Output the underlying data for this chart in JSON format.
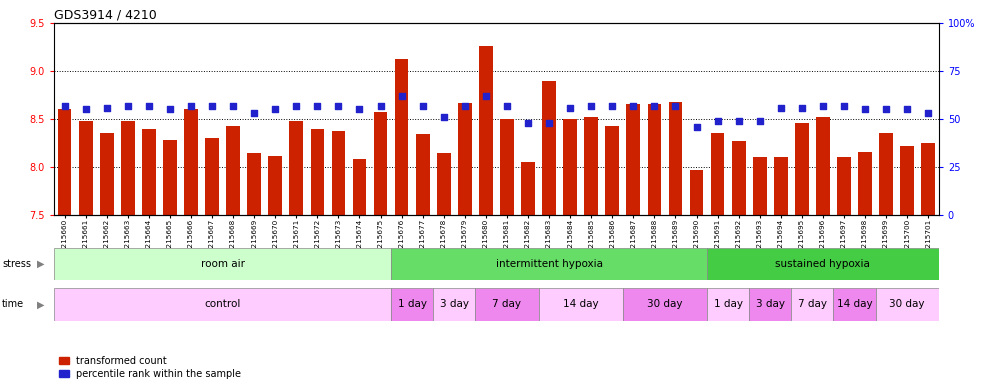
{
  "title": "GDS3914 / 4210",
  "samples": [
    "GSM215660",
    "GSM215661",
    "GSM215662",
    "GSM215663",
    "GSM215664",
    "GSM215665",
    "GSM215666",
    "GSM215667",
    "GSM215668",
    "GSM215669",
    "GSM215670",
    "GSM215671",
    "GSM215672",
    "GSM215673",
    "GSM215674",
    "GSM215675",
    "GSM215676",
    "GSM215677",
    "GSM215678",
    "GSM215679",
    "GSM215680",
    "GSM215681",
    "GSM215682",
    "GSM215683",
    "GSM215684",
    "GSM215685",
    "GSM215686",
    "GSM215687",
    "GSM215688",
    "GSM215689",
    "GSM215690",
    "GSM215691",
    "GSM215692",
    "GSM215693",
    "GSM215694",
    "GSM215695",
    "GSM215696",
    "GSM215697",
    "GSM215698",
    "GSM215699",
    "GSM215700",
    "GSM215701"
  ],
  "bar_values": [
    8.6,
    8.48,
    8.35,
    8.48,
    8.4,
    8.28,
    8.6,
    8.3,
    8.43,
    8.15,
    8.12,
    8.48,
    8.4,
    8.38,
    8.08,
    8.57,
    9.13,
    8.34,
    8.15,
    8.67,
    9.26,
    8.5,
    8.05,
    8.9,
    8.5,
    8.52,
    8.43,
    8.66,
    8.66,
    8.68,
    7.97,
    8.35,
    8.27,
    8.1,
    8.1,
    8.46,
    8.52,
    8.1,
    8.16,
    8.35,
    8.22,
    8.25
  ],
  "percentile_values": [
    57,
    55,
    56,
    57,
    57,
    55,
    57,
    57,
    57,
    53,
    55,
    57,
    57,
    57,
    55,
    57,
    62,
    57,
    51,
    57,
    62,
    57,
    48,
    48,
    56,
    57,
    57,
    57,
    57,
    57,
    46,
    49,
    49,
    49,
    56,
    56,
    57,
    57,
    55,
    55,
    55,
    53
  ],
  "ylim_left": [
    7.5,
    9.5
  ],
  "ylim_right": [
    0,
    100
  ],
  "yticks_left": [
    7.5,
    8.0,
    8.5,
    9.0,
    9.5
  ],
  "yticks_right": [
    0,
    25,
    50,
    75,
    100
  ],
  "bar_color": "#CC2200",
  "dot_color": "#2222CC",
  "bar_bottom": 7.5,
  "stress_groups": [
    {
      "label": "room air",
      "start": 0,
      "end": 16,
      "color": "#ccffcc"
    },
    {
      "label": "intermittent hypoxia",
      "start": 16,
      "end": 31,
      "color": "#66dd66"
    },
    {
      "label": "sustained hypoxia",
      "start": 31,
      "end": 42,
      "color": "#44cc44"
    }
  ],
  "time_groups": [
    {
      "label": "control",
      "start": 0,
      "end": 16,
      "color": "#ffccff"
    },
    {
      "label": "1 day",
      "start": 16,
      "end": 18,
      "color": "#ee88ee"
    },
    {
      "label": "3 day",
      "start": 18,
      "end": 20,
      "color": "#ffccff"
    },
    {
      "label": "7 day",
      "start": 20,
      "end": 23,
      "color": "#ee88ee"
    },
    {
      "label": "14 day",
      "start": 23,
      "end": 27,
      "color": "#ffccff"
    },
    {
      "label": "30 day",
      "start": 27,
      "end": 31,
      "color": "#ee88ee"
    },
    {
      "label": "1 day",
      "start": 31,
      "end": 33,
      "color": "#ffccff"
    },
    {
      "label": "3 day",
      "start": 33,
      "end": 35,
      "color": "#ee88ee"
    },
    {
      "label": "7 day",
      "start": 35,
      "end": 37,
      "color": "#ffccff"
    },
    {
      "label": "14 day",
      "start": 37,
      "end": 39,
      "color": "#ee88ee"
    },
    {
      "label": "30 day",
      "start": 39,
      "end": 42,
      "color": "#ffccff"
    }
  ],
  "legend_bar_label": "transformed count",
  "legend_dot_label": "percentile rank within the sample",
  "fig_width": 9.83,
  "fig_height": 3.84,
  "dpi": 100
}
